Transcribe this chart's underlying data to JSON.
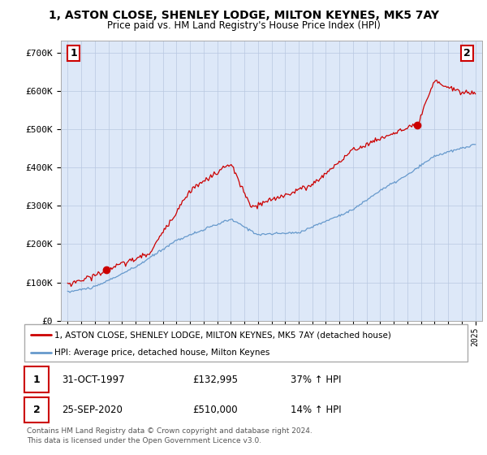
{
  "title_line1": "1, ASTON CLOSE, SHENLEY LODGE, MILTON KEYNES, MK5 7AY",
  "title_line2": "Price paid vs. HM Land Registry's House Price Index (HPI)",
  "ylabel_ticks": [
    "£0",
    "£100K",
    "£200K",
    "£300K",
    "£400K",
    "£500K",
    "£600K",
    "£700K"
  ],
  "ytick_vals": [
    0,
    100000,
    200000,
    300000,
    400000,
    500000,
    600000,
    700000
  ],
  "ylim": [
    0,
    730000
  ],
  "xlim_start": 1994.5,
  "xlim_end": 2025.5,
  "red_color": "#cc0000",
  "blue_color": "#6699cc",
  "background_color": "#dde8f8",
  "grid_color": "#b8c8e0",
  "legend_text_red": "1, ASTON CLOSE, SHENLEY LODGE, MILTON KEYNES, MK5 7AY (detached house)",
  "legend_text_blue": "HPI: Average price, detached house, Milton Keynes",
  "point1_date": "31-OCT-1997",
  "point1_price": "£132,995",
  "point1_hpi": "37% ↑ HPI",
  "point1_x": 1997.83,
  "point1_y": 132995,
  "point2_date": "25-SEP-2020",
  "point2_price": "£510,000",
  "point2_hpi": "14% ↑ HPI",
  "point2_x": 2020.73,
  "point2_y": 510000,
  "footer_line1": "Contains HM Land Registry data © Crown copyright and database right 2024.",
  "footer_line2": "This data is licensed under the Open Government Licence v3.0."
}
